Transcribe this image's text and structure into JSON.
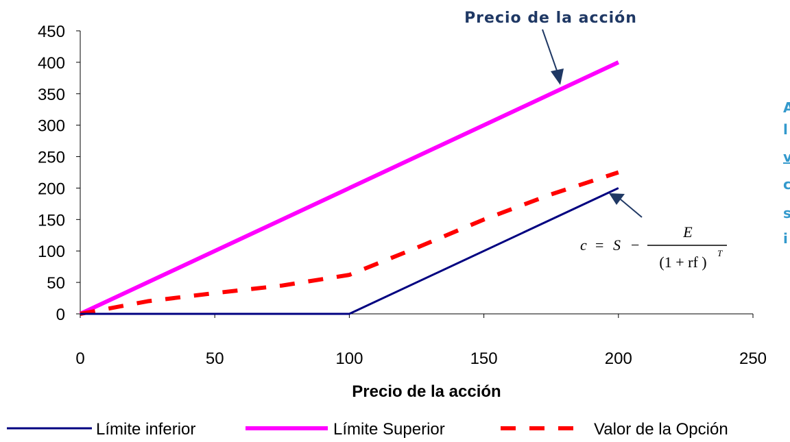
{
  "chart_data": {
    "type": "line",
    "title": "",
    "xlabel": "Precio de la acción",
    "ylabel": "",
    "xlim": [
      0,
      250
    ],
    "ylim": [
      0,
      450
    ],
    "x_ticks": [
      "0",
      "50",
      "100",
      "150",
      "200",
      "250"
    ],
    "y_ticks": [
      "0",
      "50",
      "100",
      "150",
      "200",
      "250",
      "300",
      "350",
      "400",
      "450"
    ],
    "grid": false,
    "legend_position": "bottom",
    "series": [
      {
        "name": "Límite inferior",
        "color": "#000080",
        "style": "solid",
        "x": [
          0,
          100,
          200
        ],
        "y": [
          0,
          0,
          200
        ]
      },
      {
        "name": "Límite Superior",
        "color": "#FF00FF",
        "style": "solid",
        "x": [
          0,
          200
        ],
        "y": [
          0,
          400
        ]
      },
      {
        "name": "Valor de la Opción",
        "color": "#FF0000",
        "style": "dashed",
        "x": [
          0,
          25,
          50,
          75,
          100,
          125,
          150,
          175,
          200
        ],
        "y": [
          0,
          20,
          33,
          45,
          62,
          105,
          150,
          190,
          225
        ]
      }
    ],
    "annotations": {
      "top_label": "Precio de la acción",
      "side_text": [
        "A",
        "l",
        "v",
        "c",
        "s",
        "i"
      ],
      "formula": {
        "lhs": "c",
        "eq": "=",
        "s": "S",
        "minus": "−",
        "numerator": "E",
        "denominator": "(1 + rf )",
        "exponent": "T"
      }
    }
  }
}
